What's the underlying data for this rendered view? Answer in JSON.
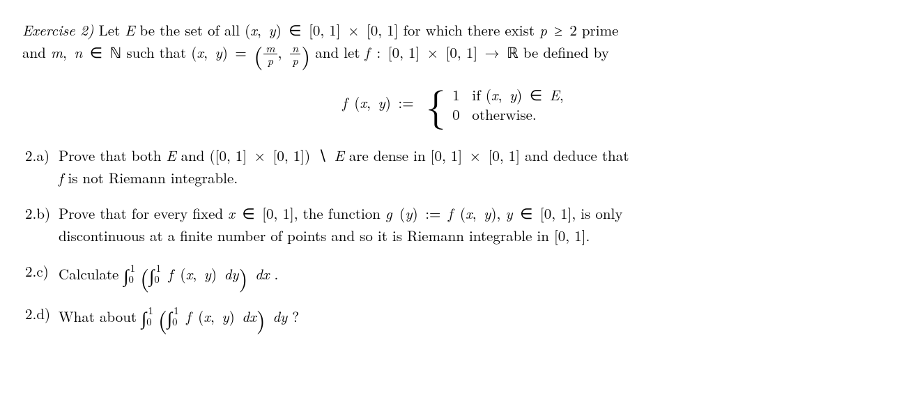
{
  "exercise_label": "Exercise 2)",
  "intro_line1_a": "Let ",
  "intro_line1_b": " be the set of all ",
  "intro_line1_c": " for which there exist ",
  "intro_line1_d": " prime",
  "intro_line2_a": "and ",
  "intro_line2_b": " such that ",
  "intro_line2_c": " and let ",
  "intro_line2_d": " be defined by",
  "sym": {
    "E": "E",
    "x": "x",
    "y": "y",
    "p": "p",
    "m": "m",
    "n": "n",
    "f": "f",
    "g": "g",
    "N": "ℕ",
    "R": "ℝ",
    "in": "∈",
    "times": "×",
    "ge": "≥",
    "to": "→",
    "setminus": "∖",
    "assign": ":="
  },
  "interval_unit": "[0, 1]",
  "two": "2",
  "zero": "0",
  "one": "1",
  "piecewise": {
    "case1_cond_a": "if ",
    "case1_cond_b": ",",
    "case2_cond": "otherwise."
  },
  "parts": {
    "a": {
      "label": "2.a)",
      "t1": "Prove that both ",
      "t2": " and ",
      "t3": " are dense in ",
      "t4": " and deduce that",
      "t5": " is not Riemann integrable."
    },
    "b": {
      "label": "2.b)",
      "t1": "Prove that for every fixed ",
      "t2": ", the function ",
      "t3": ", ",
      "t4": ", is only",
      "t5": "discontinuous at a finite number of points and so it is Riemann integrable in ",
      "t6": "."
    },
    "c": {
      "label": "2.c)",
      "t1": "Calculate ",
      "t2": "."
    },
    "d": {
      "label": "2.d)",
      "t1": "What about ",
      "t2": "?"
    }
  },
  "dy": "dy",
  "dx": "dx"
}
